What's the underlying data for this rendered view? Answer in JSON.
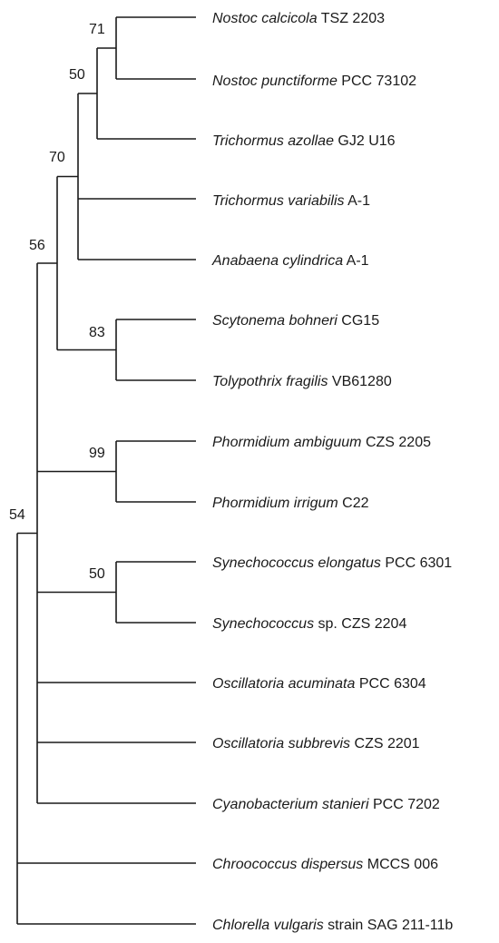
{
  "tree": {
    "taxa": [
      {
        "species": "Nostoc calcicola",
        "strain": " TSZ 2203"
      },
      {
        "species": "Nostoc punctiforme",
        "strain": " PCC 73102"
      },
      {
        "species": "Trichormus azollae",
        "strain": " GJ2 U16"
      },
      {
        "species": "Trichormus variabilis",
        "strain": " A-1"
      },
      {
        "species": "Anabaena cylindrica",
        "strain": " A-1"
      },
      {
        "species": "Scytonema bohneri",
        "strain": " CG15"
      },
      {
        "species": "Tolypothrix fragilis",
        "strain": " VB61280"
      },
      {
        "species": "Phormidium ambiguum",
        "strain": " CZS 2205"
      },
      {
        "species": "Phormidium irrigum",
        "strain": " C22"
      },
      {
        "species": "Synechococcus elongatus",
        "strain": " PCC 6301"
      },
      {
        "species": "Synechococcus",
        "strain": " sp. CZS 2204"
      },
      {
        "species": "Oscillatoria acuminata",
        "strain": " PCC 6304"
      },
      {
        "species": "Oscillatoria subbrevis",
        "strain": " CZS 2201"
      },
      {
        "species": "Cyanobacterium stanieri",
        "strain": " PCC 7202"
      },
      {
        "species": "Chroococcus dispersus",
        "strain": " MCCS 006"
      },
      {
        "species": "Chlorella vulgaris",
        "strain": " strain SAG 211-11b"
      }
    ],
    "support_values": {
      "nostoc": "71",
      "nostoc_trichormus": "50",
      "heterocystous": "70",
      "scytonema_tolypothrix": "83",
      "upper_clade": "56",
      "phormidium": "99",
      "synechococcus": "50",
      "root": "54"
    }
  }
}
